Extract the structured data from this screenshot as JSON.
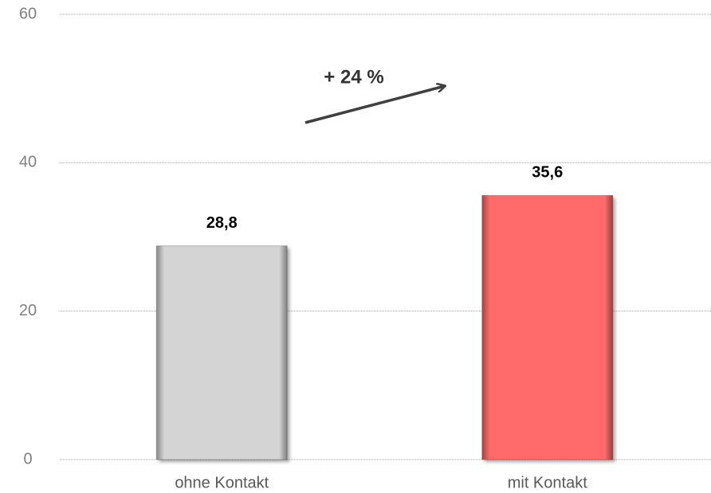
{
  "chart_data": {
    "type": "bar",
    "categories": [
      "ohne Kontakt",
      "mit Kontakt"
    ],
    "values": [
      28.8,
      35.6
    ],
    "value_labels": [
      "28,8",
      "35,6"
    ],
    "colors": [
      "#d4d4d4",
      "#ff6b6b"
    ],
    "annotation": "+ 24 %",
    "ylim": [
      0,
      60
    ],
    "yticks": [
      0,
      20,
      40,
      60
    ],
    "grid": true
  }
}
